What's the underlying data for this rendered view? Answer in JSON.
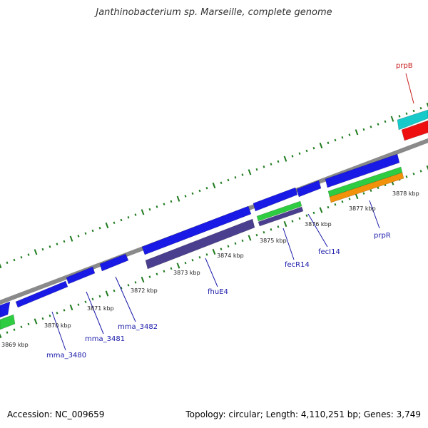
{
  "title": "Janthinobacterium sp. Marseille, complete genome",
  "footer": {
    "accession": "Accession: NC_009659",
    "summary": "Topology: circular; Length: 4,110,251 bp; Genes: 3,749"
  },
  "colors": {
    "backbone": "#8a8a8a",
    "tick": "#1e7a1e",
    "gene_blue": "#1a1ae6",
    "gene_purple": "#4a3f8f",
    "gene_green": "#2ecc40",
    "gene_orange": "#f2920a",
    "gene_cyan": "#17c9c9",
    "gene_red": "#ee1010",
    "label_blue": "#1a1aaa",
    "label_red": "#c81e1e"
  },
  "scale_labels": [
    "3869 kbp",
    "3870 kbp",
    "3871 kbp",
    "3872 kbp",
    "3873 kbp",
    "3874 kbp",
    "3875 kbp",
    "3876 kbp",
    "3877 kbp",
    "3878 kbp"
  ],
  "gene_labels": [
    "mma_3480",
    "mma_3481",
    "mma_3482",
    "fhuE4",
    "fecR14",
    "fecI14",
    "prpR",
    "prpB"
  ]
}
